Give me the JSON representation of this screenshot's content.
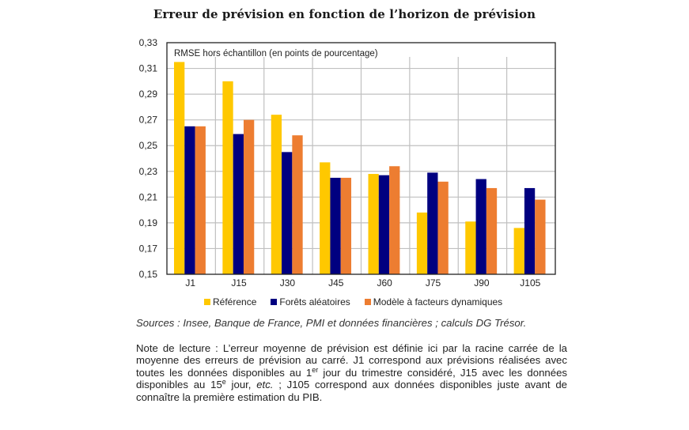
{
  "chart_data": {
    "type": "bar",
    "title": "Erreur de prévision en fonction de l’horizon de prévision",
    "annotation": "RMSE hors échantillon (en points de pourcentage)",
    "xlabel": "",
    "ylabel": "",
    "categories": [
      "J1",
      "J15",
      "J30",
      "J45",
      "J60",
      "J75",
      "J90",
      "J105"
    ],
    "series": [
      {
        "name": "Référence",
        "color": "#FFC800",
        "values": [
          0.315,
          0.3,
          0.274,
          0.237,
          0.228,
          0.198,
          0.191,
          0.186
        ]
      },
      {
        "name": "Forêts aléatoires",
        "color": "#000080",
        "values": [
          0.265,
          0.259,
          0.245,
          0.225,
          0.227,
          0.229,
          0.224,
          0.217
        ]
      },
      {
        "name": "Modèle à facteurs dynamiques",
        "color": "#ED7D31",
        "values": [
          0.265,
          0.27,
          0.258,
          0.225,
          0.234,
          0.222,
          0.217,
          0.208
        ]
      }
    ],
    "ylim": [
      0.15,
      0.33
    ],
    "yticks": [
      "0,15",
      "0,17",
      "0,19",
      "0,21",
      "0,23",
      "0,25",
      "0,27",
      "0,29",
      "0,31",
      "0,33"
    ],
    "grid": true,
    "legend_position": "bottom"
  },
  "sources": "Sources : Insee, Banque de France, PMI et données financières ; calculs DG Trésor.",
  "note": {
    "part1": "Note de lecture : L’erreur moyenne de prévision est définie ici par la racine carrée de la moyenne des erreurs de prévision au carré. J1 correspond aux prévisions réalisées avec toutes les données disponibles au 1",
    "sup1": "er",
    "part2": " jour du trimestre considéré, J15 avec les données disponibles au 15",
    "sup2": "e",
    "part3": " jour, ",
    "etc": "etc.",
    "part4": " ; J105 correspond aux données disponibles juste avant de connaître la première estimation du PIB."
  }
}
